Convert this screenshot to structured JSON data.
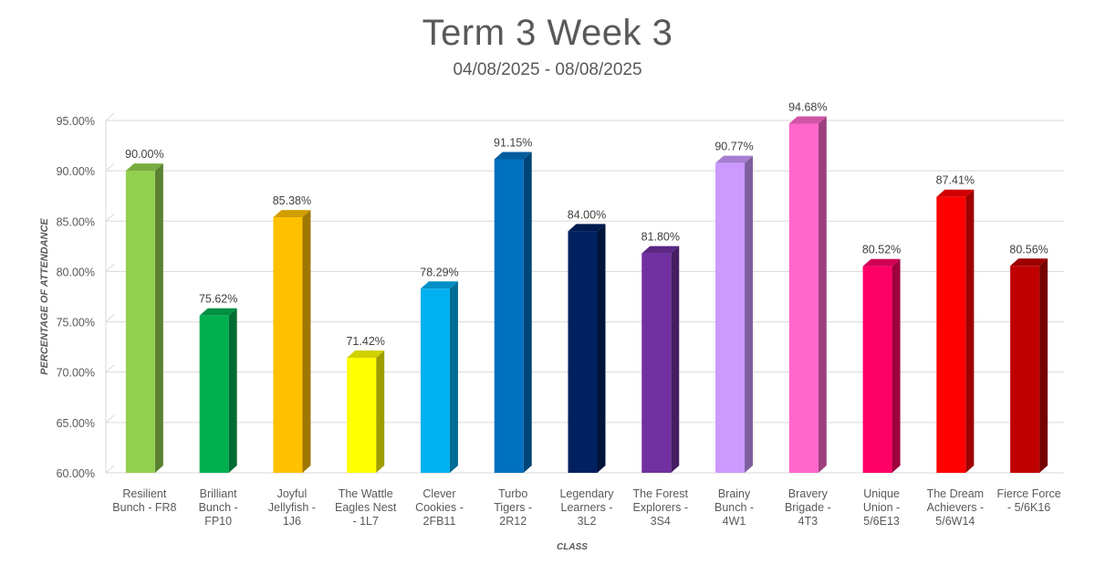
{
  "chart_data": {
    "type": "bar",
    "title": "Term 3 Week 3",
    "subtitle": "04/08/2025 - 08/08/2025",
    "xlabel": "CLASS",
    "ylabel": "PERCENTAGE OF ATTENDANCE",
    "ylim": [
      60,
      95
    ],
    "yticks": [
      "60.00%",
      "65.00%",
      "70.00%",
      "75.00%",
      "80.00%",
      "85.00%",
      "90.00%",
      "95.00%"
    ],
    "grid": true,
    "categories": [
      [
        "Resilient",
        "Bunch - FR8"
      ],
      [
        "Brilliant",
        "Bunch -",
        "FP10"
      ],
      [
        "Joyful",
        "Jellyfish -",
        "1J6"
      ],
      [
        "The Wattle",
        "Eagles Nest",
        "- 1L7"
      ],
      [
        "Clever",
        "Cookies -",
        "2FB11"
      ],
      [
        "Turbo",
        "Tigers -",
        "2R12"
      ],
      [
        "Legendary",
        "Learners -",
        "3L2"
      ],
      [
        "The Forest",
        "Explorers -",
        "3S4"
      ],
      [
        "Brainy",
        "Bunch -",
        "4W1"
      ],
      [
        "Bravery",
        "Brigade -",
        "4T3"
      ],
      [
        "Unique",
        "Union -",
        "5/6E13"
      ],
      [
        "The Dream",
        "Achievers -",
        "5/6W14"
      ],
      [
        "Fierce Force",
        "- 5/6K16"
      ]
    ],
    "values": [
      90.0,
      75.62,
      85.38,
      71.42,
      78.29,
      91.15,
      84.0,
      81.8,
      90.77,
      94.68,
      80.52,
      87.41,
      80.56
    ],
    "data_labels": [
      "90.00%",
      "75.62%",
      "85.38%",
      "71.42%",
      "78.29%",
      "91.15%",
      "84.00%",
      "81.80%",
      "90.77%",
      "94.68%",
      "80.52%",
      "87.41%",
      "80.56%"
    ],
    "colors": [
      "#92d050",
      "#00b050",
      "#ffc000",
      "#ffff00",
      "#00b0f0",
      "#0070c0",
      "#002060",
      "#7030a0",
      "#cc99ff",
      "#ff66cc",
      "#ff0066",
      "#ff0000",
      "#c00000"
    ]
  }
}
